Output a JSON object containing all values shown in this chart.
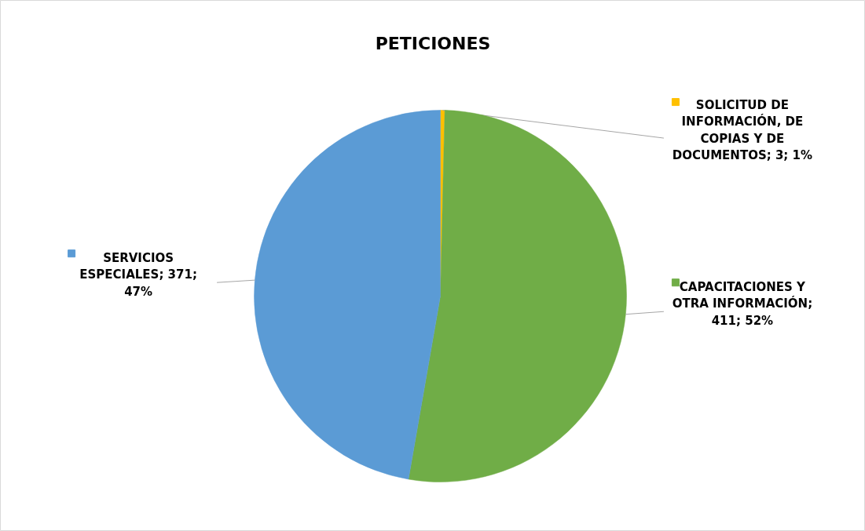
{
  "chart_data": {
    "type": "pie",
    "title": "PETICIONES",
    "categories": [
      "SOLICITUD DE INFORMACIÓN, DE COPIAS Y DE DOCUMENTOS",
      "CAPACITACIONES Y OTRA INFORMACIÓN",
      "SERVICIOS ESPECIALES"
    ],
    "values": [
      3,
      411,
      371
    ],
    "colors": [
      "#ffc000",
      "#70ad47",
      "#5b9bd5"
    ],
    "value_labels": [
      "; 3; 1%",
      "; 411; 52%",
      "; 371; 47%"
    ],
    "legend": "right",
    "data_labels": true
  }
}
